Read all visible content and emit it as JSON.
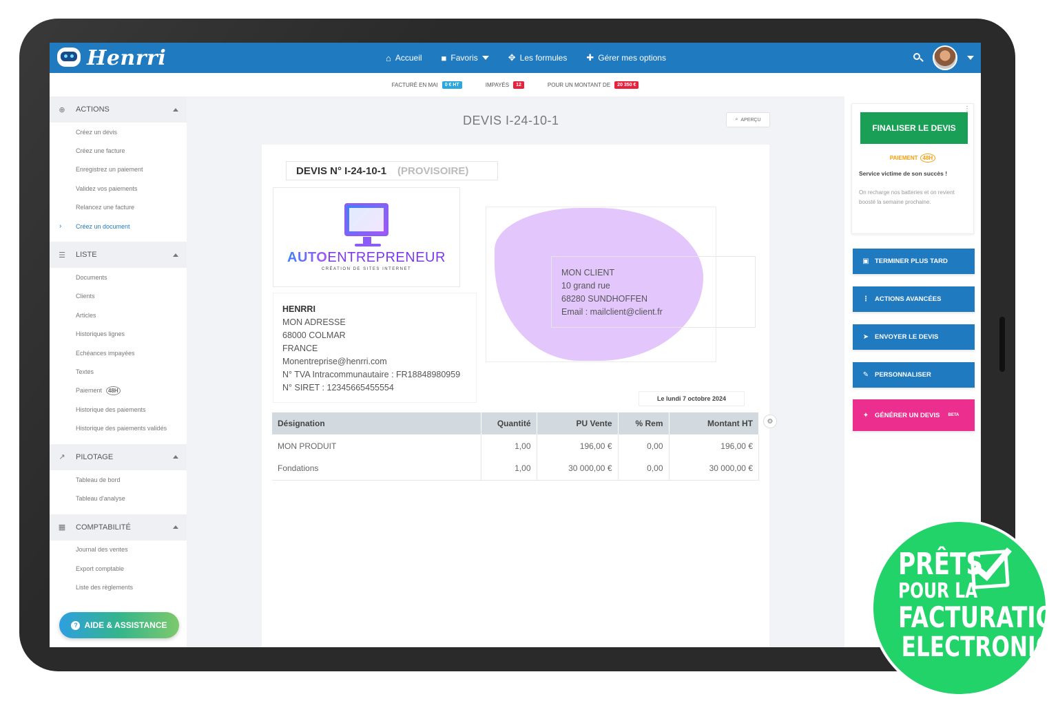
{
  "app": {
    "logo_text": "Henrri"
  },
  "nav": {
    "items": [
      {
        "label": "Accueil",
        "icon": "home-icon"
      },
      {
        "label": "Favoris",
        "icon": "bookmark-icon"
      },
      {
        "label": "Les formules",
        "icon": "gears-icon"
      },
      {
        "label": "Gérer mes options",
        "icon": "puzzle-icon"
      }
    ]
  },
  "stats": {
    "facture_label": "Facturé en mai",
    "facture_value": "0 € HT",
    "impayes_label": "Impayés",
    "impayes_value": "12",
    "montant_label": "Pour un montant de",
    "montant_value": "20 350 €"
  },
  "sidebar": {
    "sections": [
      {
        "title": "Actions",
        "items": [
          "Créez un devis",
          "Créez une facture",
          "Enregistrez un paiement",
          "Validez vos paiements",
          "Relancez une facture",
          "Créez un document"
        ]
      },
      {
        "title": "Liste",
        "items": [
          "Documents",
          "Clients",
          "Articles",
          "Historiques lignes",
          "Echéances impayées",
          "Textes",
          "Paiement",
          "Historique des paiements",
          "Historique des paiements validés"
        ]
      },
      {
        "title": "Pilotage",
        "items": [
          "Tableau de bord",
          "Tableau d'analyse"
        ]
      },
      {
        "title": "Comptabilité",
        "items": [
          "Journal des ventes",
          "Export comptable",
          "Liste des règlements"
        ]
      }
    ],
    "paiement_badge": "48H",
    "help_button": "Aide & assistance"
  },
  "main": {
    "title": "DEVIS I-24-10-1",
    "preview_button": "Aperçu",
    "doc_number": "DEVIS N° I-24-10-1",
    "doc_status": "(PROVISOIRE)",
    "brand": {
      "line1_a": "AUTO",
      "line1_b": "ENTREPRENEUR",
      "line2": "CRÉATION DE SITES INTERNET"
    },
    "sender": {
      "name": "HENRRI",
      "address": "MON ADRESSE",
      "city": "68000 COLMAR",
      "country": "FRANCE",
      "email": "Monentreprise@henrri.com",
      "tva": "N° TVA Intracommunautaire : FR18848980959",
      "siret": "N° SIRET : 12345665455554"
    },
    "client": {
      "name": "MON CLIENT",
      "street": "10 grand rue",
      "city": "68280 SUNDHOFFEN",
      "email": "Email : mailclient@client.fr"
    },
    "date": "Le lundi 7 octobre 2024",
    "table": {
      "headers": [
        "Désignation",
        "Quantité",
        "PU Vente",
        "% Rem",
        "Montant HT"
      ],
      "rows": [
        [
          "MON PRODUIT",
          "1,00",
          "196,00 €",
          "0,00",
          "196,00 €"
        ],
        [
          "Fondations",
          "1,00",
          "30 000,00 €",
          "0,00",
          "30 000,00 €"
        ]
      ]
    }
  },
  "right_panel": {
    "finalize": "Finaliser le devis",
    "promo_tag": "Paiement",
    "promo_badge": "48H",
    "promo_head": "Service victime de son succès !",
    "promo_text": "On recharge nos batteries et on revient boosté la semaine prochaine.",
    "buttons": {
      "later": "Terminer plus tard",
      "advanced": "Actions avancées",
      "send": "Envoyer le devis",
      "customize": "Personnaliser",
      "generate": "Générer un devis",
      "generate_badge": "BETA"
    }
  },
  "badge": {
    "line1": "PRÊTS",
    "line2": "POUR LA",
    "line3": "FACTURATION",
    "line4": "ELECTRONIQUE"
  },
  "colors": {
    "primary": "#1f7ac0",
    "success": "#1aa056",
    "pink": "#ec2f8e",
    "badge_green": "#22d36a",
    "blob": "#e3c7fc"
  }
}
